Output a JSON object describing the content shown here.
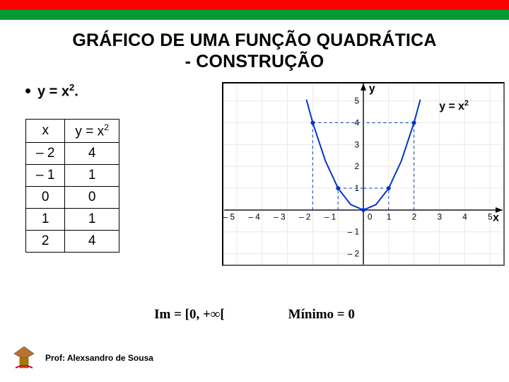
{
  "title_line1": "GRÁFICO DE UMA FUNÇÃO QUADRÁTICA",
  "title_line2": "- CONSTRUÇÃO",
  "bullet_equation_prefix": "y = x",
  "bullet_equation_suffix": ".",
  "table": {
    "col1_header": "x",
    "col2_header_prefix": "y = x",
    "rows": [
      {
        "x": "– 2",
        "y": "4"
      },
      {
        "x": "– 1",
        "y": "1"
      },
      {
        "x": "0",
        "y": "0"
      },
      {
        "x": "1",
        "y": "1"
      },
      {
        "x": "2",
        "y": "4"
      }
    ]
  },
  "chart": {
    "type": "scatter_with_curve",
    "xlim": [
      -5.5,
      5.5
    ],
    "ylim": [
      -2.5,
      5.8
    ],
    "x_ticks": [
      -5,
      -4,
      -3,
      -2,
      -1,
      0,
      1,
      2,
      3,
      4,
      5
    ],
    "y_ticks": [
      -2,
      -1,
      1,
      2,
      3,
      4,
      5
    ],
    "x_axis_label": "x",
    "y_axis_label": "y",
    "curve_label_prefix": "y = x",
    "grid_color": "#e8e8e8",
    "axis_color": "#000000",
    "tick_label_color": "#000000",
    "tick_label_fontsize": 12,
    "axis_label_fontsize": 16,
    "curve_color": "#0033cc",
    "curve_width": 2,
    "point_color": "#0033cc",
    "point_radius": 3,
    "dash_color": "#0033cc",
    "dash_pattern": "4,4",
    "points": [
      {
        "x": -2,
        "y": 4
      },
      {
        "x": -1,
        "y": 1
      },
      {
        "x": 0,
        "y": 0
      },
      {
        "x": 1,
        "y": 1
      },
      {
        "x": 2,
        "y": 4
      }
    ],
    "dashes_x": [
      -2,
      -1,
      1,
      2
    ],
    "curve_samples": [
      {
        "x": -2.25,
        "y": 5.0625
      },
      {
        "x": -2,
        "y": 4
      },
      {
        "x": -1.5,
        "y": 2.25
      },
      {
        "x": -1,
        "y": 1
      },
      {
        "x": -0.5,
        "y": 0.25
      },
      {
        "x": 0,
        "y": 0
      },
      {
        "x": 0.5,
        "y": 0.25
      },
      {
        "x": 1,
        "y": 1
      },
      {
        "x": 1.5,
        "y": 2.25
      },
      {
        "x": 2,
        "y": 4
      },
      {
        "x": 2.25,
        "y": 5.0625
      }
    ],
    "background_color": "#ffffff"
  },
  "im_text": "Im = [0, +∞[",
  "min_text": "Mínimo = 0",
  "footer_text": "Prof: Alexsandro de Sousa"
}
